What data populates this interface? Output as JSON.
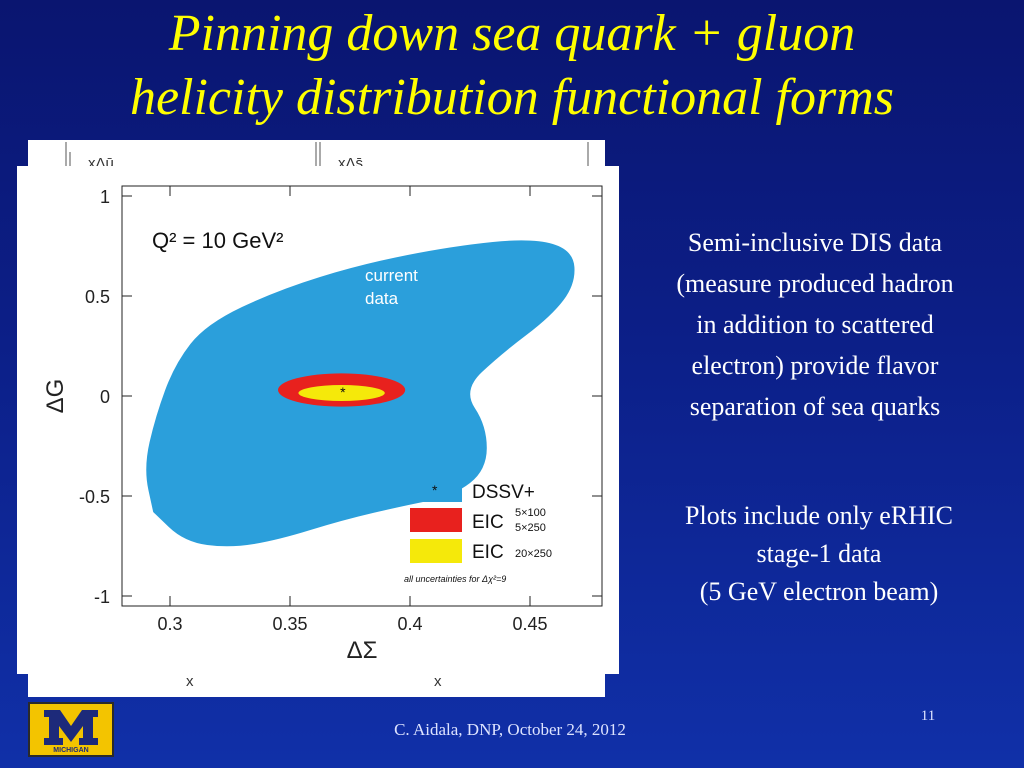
{
  "slide": {
    "title_line1": "Pinning down sea quark + gluon",
    "title_line2": "helicity distribution functional forms",
    "text_block1": [
      "Semi-inclusive DIS data",
      "(measure produced hadron",
      "in addition to scattered",
      "electron) provide flavor",
      "separation of sea quarks"
    ],
    "text_block2": [
      "Plots include only eRHIC",
      "stage-1 data",
      "(5 GeV electron beam)"
    ],
    "footer": "C. Aidala, DNP, October 24, 2012",
    "page_number": "11",
    "logo_text": "MICHIGAN",
    "title_color": "#ffff00",
    "background_color": "#0c1f88"
  },
  "back_figure": {
    "labels": [
      "xΔū",
      "xΔs̄",
      "x",
      "x"
    ]
  },
  "chart_data": {
    "type": "contour",
    "annotation": "Q² = 10 GeV²",
    "xlabel": "ΔΣ",
    "ylabel": "ΔG",
    "xlim": [
      0.28,
      0.48
    ],
    "ylim": [
      -1.05,
      1.05
    ],
    "x_ticks": [
      0.3,
      0.35,
      0.4,
      0.45
    ],
    "x_tick_labels": [
      "0.3",
      "0.35",
      "0.4",
      "0.45"
    ],
    "y_ticks": [
      1,
      0.5,
      0,
      -0.5,
      -1
    ],
    "y_tick_labels": [
      "1",
      "0.5",
      "0",
      "-0.5",
      "-1"
    ],
    "region_label": [
      "current",
      "data"
    ],
    "series": [
      {
        "name": "DSSV+",
        "color": "#2b9fdb",
        "central_point": [
          0.372,
          0.02
        ],
        "boundary": [
          [
            0.293,
            -0.58
          ],
          [
            0.306,
            -0.73
          ],
          [
            0.325,
            -0.76
          ],
          [
            0.345,
            -0.72
          ],
          [
            0.372,
            -0.62
          ],
          [
            0.397,
            -0.55
          ],
          [
            0.418,
            -0.5
          ],
          [
            0.432,
            -0.37
          ],
          [
            0.432,
            -0.15
          ],
          [
            0.422,
            0.03
          ],
          [
            0.438,
            0.21
          ],
          [
            0.459,
            0.4
          ],
          [
            0.469,
            0.56
          ],
          [
            0.468,
            0.73
          ],
          [
            0.451,
            0.79
          ],
          [
            0.418,
            0.75
          ],
          [
            0.38,
            0.66
          ],
          [
            0.345,
            0.53
          ],
          [
            0.315,
            0.36
          ],
          [
            0.302,
            0.16
          ],
          [
            0.294,
            -0.1
          ],
          [
            0.289,
            -0.36
          ],
          [
            0.293,
            -0.58
          ]
        ]
      },
      {
        "name": "EIC",
        "beam_label": [
          "5×100",
          "5×250"
        ],
        "color": "#e8211e",
        "center": [
          0.3715,
          0.03
        ],
        "half_width": [
          0.0265,
          0.083
        ]
      },
      {
        "name": "EIC",
        "beam_label": [
          "20×250"
        ],
        "color": "#f5e90a",
        "center": [
          0.3715,
          0.015
        ],
        "half_width": [
          0.018,
          0.04
        ]
      }
    ],
    "legend_placement": "bottom-right",
    "uncertainty_note": "all uncertainties for Δχ²=9"
  }
}
